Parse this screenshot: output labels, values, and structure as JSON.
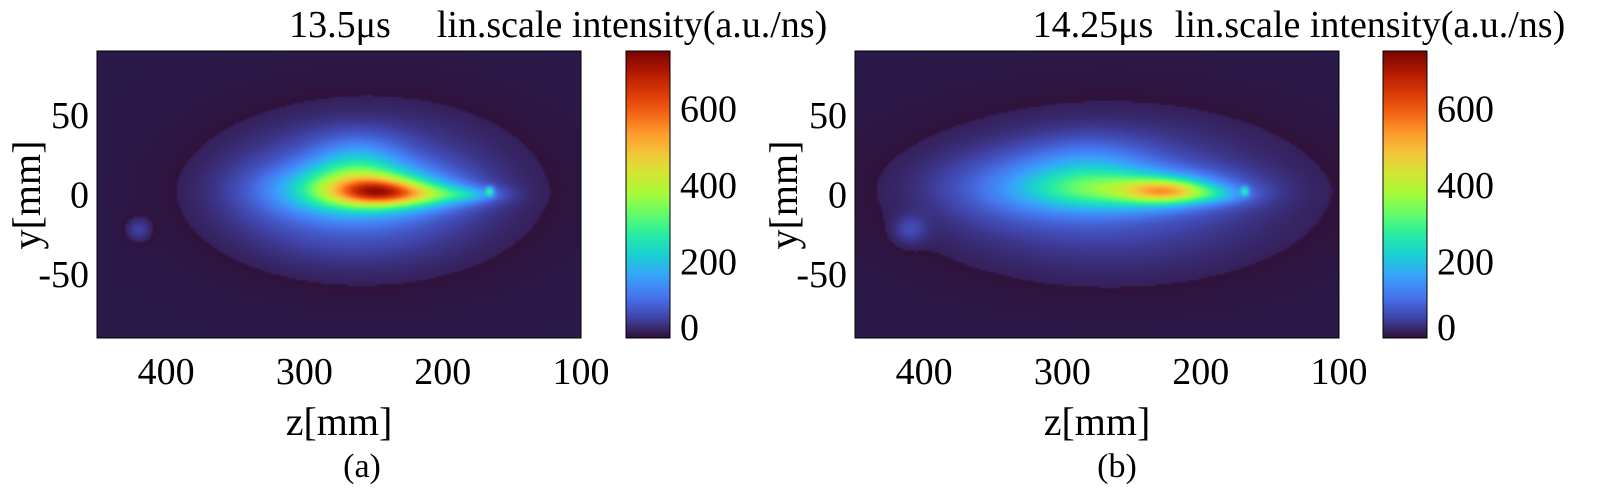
{
  "colors": {
    "background": "#2a1a4a",
    "colormap": [
      "#30123b",
      "#4145ab",
      "#4675ed",
      "#39a2fc",
      "#1bcfd4",
      "#24eca6",
      "#61fc6c",
      "#a4fc3b",
      "#d1e834",
      "#f3c63a",
      "#fe9b2d",
      "#f36315",
      "#d93806",
      "#b11901",
      "#7a0402"
    ]
  },
  "chart_data": [
    {
      "type": "heatmap",
      "panel_label": "(a)",
      "time_label": "13.5μs",
      "colorbar_label": "lin.scale intensity(a.u./ns)",
      "xlabel": "z[mm]",
      "ylabel": "y[mm]",
      "xlim": [
        450,
        100
      ],
      "ylim": [
        -90,
        90
      ],
      "xticks": [
        400,
        300,
        200,
        100
      ],
      "yticks": [
        50,
        0,
        -50
      ],
      "clim": [
        0,
        750
      ],
      "cticks": [
        0,
        200,
        400,
        600
      ],
      "blobs": [
        {
          "z": 248,
          "y": 2,
          "sz": 22,
          "sy": 6,
          "amp": 260
        },
        {
          "z": 260,
          "y": 3,
          "sz": 38,
          "sy": 10,
          "amp": 250
        },
        {
          "z": 262,
          "y": 18,
          "sz": 22,
          "sy": 12,
          "amp": 110
        },
        {
          "z": 215,
          "y": 0,
          "sz": 28,
          "sy": 5,
          "amp": 170
        },
        {
          "z": 180,
          "y": 0,
          "sz": 14,
          "sy": 3,
          "amp": 70
        },
        {
          "z": 268,
          "y": 0,
          "sz": 55,
          "sy": 24,
          "amp": 95
        },
        {
          "z": 245,
          "y": 5,
          "sz": 85,
          "sy": 40,
          "amp": 32
        },
        {
          "z": 420,
          "y": -22,
          "sz": 6,
          "sy": 5,
          "amp": 45
        },
        {
          "z": 166,
          "y": 2,
          "sz": 2,
          "sy": 2,
          "amp": 180
        }
      ]
    },
    {
      "type": "heatmap",
      "panel_label": "(b)",
      "time_label": "14.25μs",
      "colorbar_label": "lin.scale intensity(a.u./ns)",
      "xlabel": "z[mm]",
      "ylabel": "y[mm]",
      "xlim": [
        450,
        100
      ],
      "ylim": [
        -90,
        90
      ],
      "xticks": [
        400,
        300,
        200,
        100
      ],
      "yticks": [
        50,
        0,
        -50
      ],
      "clim": [
        0,
        750
      ],
      "cticks": [
        0,
        200,
        400,
        600
      ],
      "blobs": [
        {
          "z": 225,
          "y": 2,
          "sz": 20,
          "sy": 5,
          "amp": 270
        },
        {
          "z": 250,
          "y": 3,
          "sz": 45,
          "sy": 8,
          "amp": 190
        },
        {
          "z": 300,
          "y": 5,
          "sz": 50,
          "sy": 14,
          "amp": 100
        },
        {
          "z": 280,
          "y": 18,
          "sz": 30,
          "sy": 12,
          "amp": 60
        },
        {
          "z": 190,
          "y": 0,
          "sz": 18,
          "sy": 4,
          "amp": 80
        },
        {
          "z": 270,
          "y": 0,
          "sz": 80,
          "sy": 28,
          "amp": 55
        },
        {
          "z": 260,
          "y": 0,
          "sz": 110,
          "sy": 45,
          "amp": 20
        },
        {
          "z": 410,
          "y": -22,
          "sz": 8,
          "sy": 6,
          "amp": 45
        },
        {
          "z": 168,
          "y": 2,
          "sz": 2,
          "sy": 2,
          "amp": 170
        }
      ]
    }
  ]
}
